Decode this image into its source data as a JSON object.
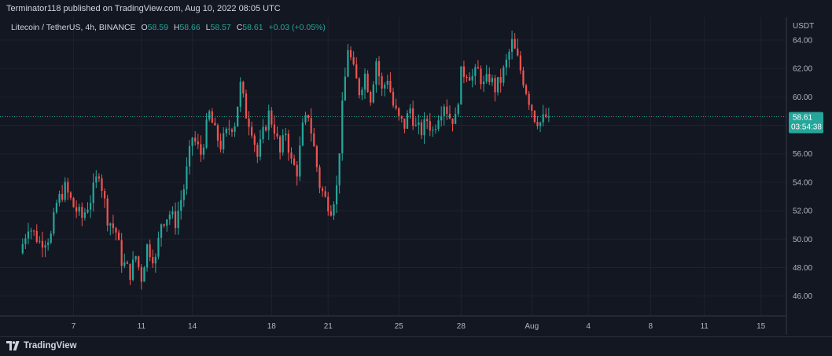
{
  "header": {
    "published": "Terminator118 published on TradingView.com, Aug 10, 2022 08:05 UTC"
  },
  "legend": {
    "symbol": "Litecoin / TetherUS, 4h, BINANCE",
    "o_label": "O",
    "o_value": "58.59",
    "h_label": "H",
    "h_value": "58.66",
    "l_label": "L",
    "l_value": "58.57",
    "c_label": "C",
    "c_value": "58.61",
    "change": "+0.03 (+0.05%)"
  },
  "footer": {
    "brand": "TradingView"
  },
  "colors": {
    "background": "#131722",
    "grid": "#1e222d",
    "up": "#26a69a",
    "down": "#ef5350",
    "text": "#b2b5be",
    "price_tag": "#26a69a"
  },
  "chart_data": {
    "type": "candlestick",
    "currency_label": "USDT",
    "last_price": "58.61",
    "countdown": "03:54:38",
    "last_price_value": 58.61,
    "ylim": [
      44.6,
      65.6
    ],
    "y_ticks": [
      {
        "value": 46,
        "label": "46.00"
      },
      {
        "value": 48,
        "label": "48.00"
      },
      {
        "value": 50,
        "label": "50.00"
      },
      {
        "value": 52,
        "label": "52.00"
      },
      {
        "value": 54,
        "label": "54.00"
      },
      {
        "value": 56,
        "label": "56.00"
      },
      {
        "value": 58,
        "label": "58.00"
      },
      {
        "value": 60,
        "label": "60.00"
      },
      {
        "value": 62,
        "label": "62.00"
      },
      {
        "value": 64,
        "label": "64.00"
      }
    ],
    "x_ticks": [
      {
        "index": 18,
        "label": "7"
      },
      {
        "index": 42,
        "label": "11"
      },
      {
        "index": 60,
        "label": "14"
      },
      {
        "index": 88,
        "label": "18"
      },
      {
        "index": 108,
        "label": "21"
      },
      {
        "index": 133,
        "label": "25"
      },
      {
        "index": 155,
        "label": "28"
      },
      {
        "index": 180,
        "label": "Aug"
      },
      {
        "index": 200,
        "label": "4"
      },
      {
        "index": 222,
        "label": "8"
      },
      {
        "index": 241,
        "label": "11"
      },
      {
        "index": 261,
        "label": "15"
      }
    ],
    "index_range": [
      -8,
      270
    ],
    "anchors": [
      [
        0,
        49.0
      ],
      [
        3,
        51.0
      ],
      [
        7,
        49.8
      ],
      [
        11,
        50.2
      ],
      [
        13,
        52.5
      ],
      [
        16,
        53.6
      ],
      [
        19,
        52.3
      ],
      [
        22,
        51.5
      ],
      [
        25,
        52.8
      ],
      [
        28,
        54.8
      ],
      [
        31,
        51.5
      ],
      [
        34,
        50.5
      ],
      [
        36,
        48.5
      ],
      [
        39,
        47.6
      ],
      [
        41,
        48.8
      ],
      [
        43,
        47.3
      ],
      [
        45,
        49.5
      ],
      [
        48,
        48.5
      ],
      [
        50,
        51.2
      ],
      [
        53,
        51.8
      ],
      [
        55,
        51.2
      ],
      [
        58,
        53.6
      ],
      [
        61,
        57.2
      ],
      [
        64,
        56.0
      ],
      [
        67,
        58.8
      ],
      [
        69,
        57.5
      ],
      [
        71,
        56.6
      ],
      [
        74,
        57.8
      ],
      [
        76,
        58.2
      ],
      [
        78,
        60.8
      ],
      [
        80,
        58.8
      ],
      [
        82,
        57.8
      ],
      [
        84,
        55.8
      ],
      [
        86,
        57.4
      ],
      [
        88,
        58.8
      ],
      [
        90,
        57.8
      ],
      [
        92,
        56.0
      ],
      [
        94,
        57.6
      ],
      [
        96,
        55.4
      ],
      [
        98,
        54.8
      ],
      [
        100,
        57.8
      ],
      [
        102,
        58.8
      ],
      [
        104,
        56.4
      ],
      [
        106,
        53.8
      ],
      [
        108,
        52.8
      ],
      [
        110,
        52.2
      ],
      [
        112,
        53.6
      ],
      [
        114,
        59.2
      ],
      [
        116,
        63.5
      ],
      [
        118,
        61.8
      ],
      [
        120,
        60.4
      ],
      [
        122,
        61.6
      ],
      [
        124,
        60.0
      ],
      [
        126,
        62.6
      ],
      [
        128,
        60.4
      ],
      [
        130,
        61.4
      ],
      [
        132,
        59.4
      ],
      [
        134,
        58.4
      ],
      [
        136,
        58.0
      ],
      [
        138,
        59.2
      ],
      [
        140,
        57.8
      ],
      [
        142,
        57.6
      ],
      [
        144,
        58.4
      ],
      [
        146,
        57.6
      ],
      [
        148,
        58.8
      ],
      [
        150,
        59.6
      ],
      [
        152,
        58.6
      ],
      [
        154,
        58.4
      ],
      [
        156,
        61.6
      ],
      [
        158,
        61.8
      ],
      [
        160,
        61.4
      ],
      [
        162,
        61.8
      ],
      [
        164,
        60.8
      ],
      [
        166,
        61.4
      ],
      [
        168,
        60.6
      ],
      [
        170,
        61.2
      ],
      [
        172,
        62.4
      ],
      [
        174,
        63.8
      ],
      [
        176,
        62.6
      ],
      [
        178,
        61.2
      ],
      [
        180,
        59.8
      ],
      [
        182,
        58.6
      ],
      [
        184,
        58.2
      ],
      [
        186,
        58.6
      ]
    ]
  }
}
